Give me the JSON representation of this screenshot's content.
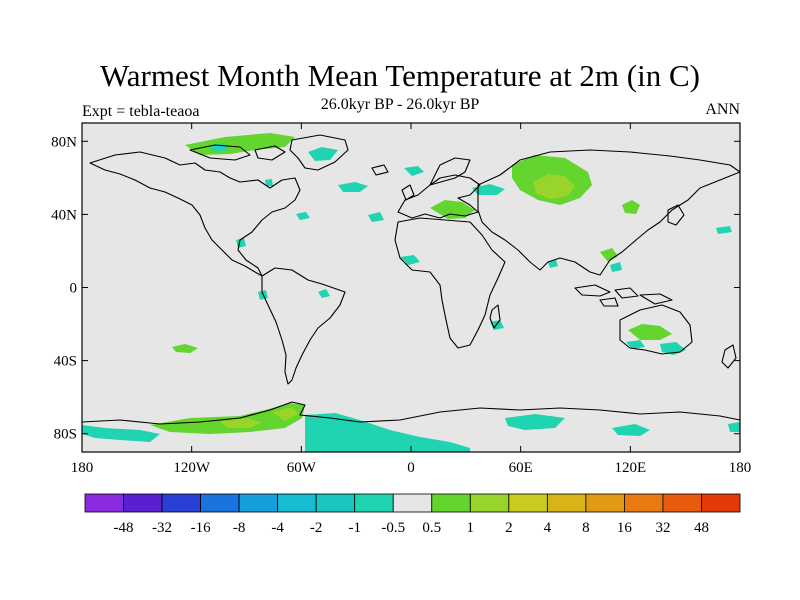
{
  "title": "Warmest Month Mean Temperature at 2m (in C)",
  "subtitle": "26.0kyr BP - 26.0kyr BP",
  "left_label": "Expt = tebla-teaoa",
  "right_label": "ANN",
  "map": {
    "background_color": "#e6e6e6",
    "lat_range": [
      -90,
      90
    ],
    "lon_range": [
      -180,
      180
    ],
    "y_ticks": [
      "80N",
      "40N",
      "0",
      "40S",
      "80S"
    ],
    "y_tick_values": [
      80,
      40,
      0,
      -40,
      -80
    ],
    "x_ticks": [
      "180",
      "120W",
      "60W",
      "0",
      "60E",
      "120E",
      "180"
    ],
    "x_tick_values": [
      -180,
      -120,
      -60,
      0,
      60,
      120,
      180
    ]
  },
  "colorbar": {
    "colors": [
      "#8a2be2",
      "#5a1fd0",
      "#2a3fd6",
      "#1a74e0",
      "#14a0dc",
      "#16bcd0",
      "#1ac6c0",
      "#20d4b2",
      "#e6e6e6",
      "#64d42e",
      "#98d42a",
      "#c8cc1e",
      "#d8b418",
      "#e09a14",
      "#e87a10",
      "#e85a0e",
      "#e43a0a"
    ],
    "labels": [
      "-48",
      "-32",
      "-16",
      "-8",
      "-4",
      "-2",
      "-1",
      "-0.5",
      "0.5",
      "1",
      "2",
      "4",
      "8",
      "16",
      "32",
      "48"
    ]
  }
}
